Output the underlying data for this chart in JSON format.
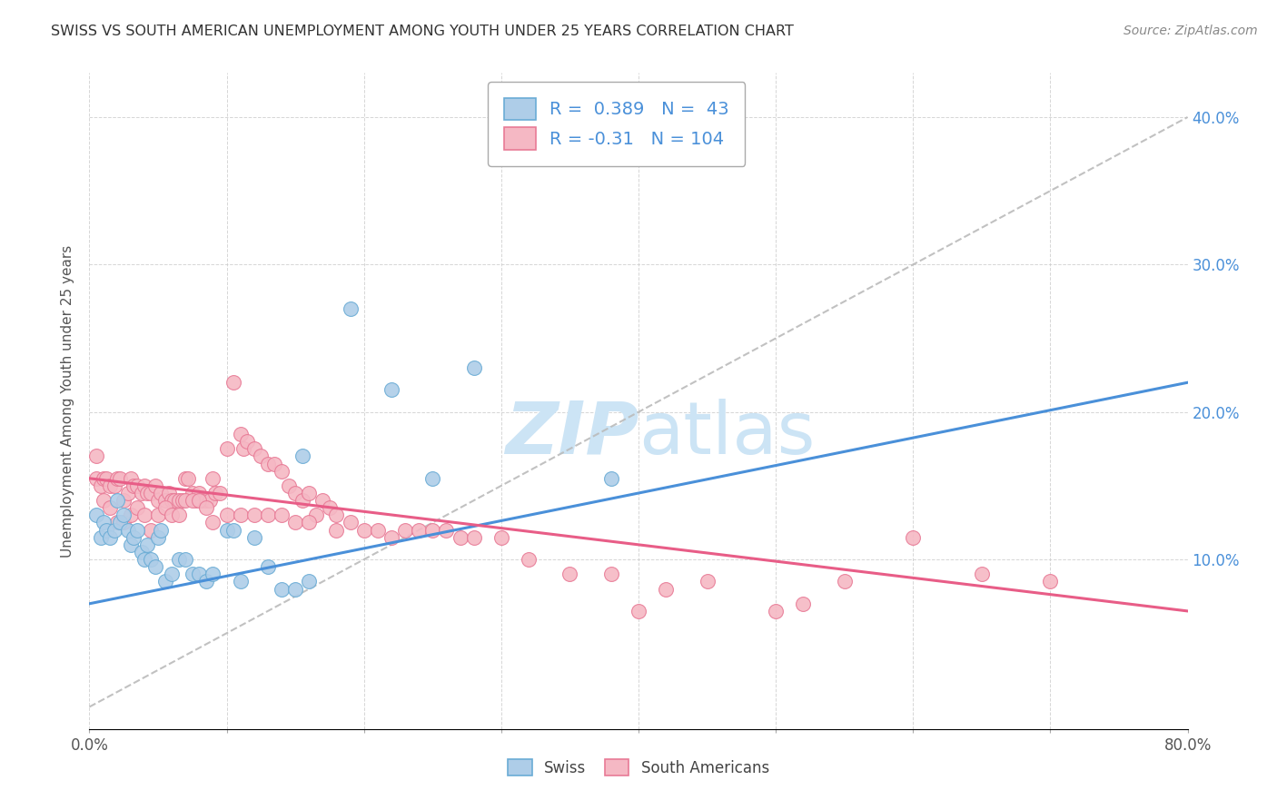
{
  "title": "SWISS VS SOUTH AMERICAN UNEMPLOYMENT AMONG YOUTH UNDER 25 YEARS CORRELATION CHART",
  "source": "Source: ZipAtlas.com",
  "ylabel": "Unemployment Among Youth under 25 years",
  "xlim": [
    0.0,
    0.8
  ],
  "ylim": [
    -0.015,
    0.43
  ],
  "xticks": [
    0.0,
    0.1,
    0.2,
    0.3,
    0.4,
    0.5,
    0.6,
    0.7,
    0.8
  ],
  "yticks_right": [
    0.1,
    0.2,
    0.3,
    0.4
  ],
  "ytick_right_labels": [
    "10.0%",
    "20.0%",
    "30.0%",
    "40.0%"
  ],
  "swiss_R": 0.389,
  "swiss_N": 43,
  "south_R": -0.31,
  "south_N": 104,
  "swiss_scatter_color": "#aecde8",
  "swiss_edge_color": "#6aacd5",
  "south_scatter_color": "#f5b8c4",
  "south_edge_color": "#e87a96",
  "swiss_line_color": "#4a90d9",
  "south_line_color": "#e85d87",
  "dash_line_color": "#bbbbbb",
  "watermark_color": "#cce4f5",
  "swiss_x": [
    0.005,
    0.008,
    0.01,
    0.012,
    0.015,
    0.018,
    0.02,
    0.022,
    0.025,
    0.028,
    0.03,
    0.032,
    0.035,
    0.038,
    0.04,
    0.042,
    0.045,
    0.048,
    0.05,
    0.052,
    0.055,
    0.06,
    0.065,
    0.07,
    0.075,
    0.08,
    0.085,
    0.09,
    0.1,
    0.105,
    0.11,
    0.12,
    0.13,
    0.14,
    0.15,
    0.155,
    0.16,
    0.19,
    0.22,
    0.25,
    0.28,
    0.33,
    0.38
  ],
  "swiss_y": [
    0.13,
    0.115,
    0.125,
    0.12,
    0.115,
    0.12,
    0.14,
    0.125,
    0.13,
    0.12,
    0.11,
    0.115,
    0.12,
    0.105,
    0.1,
    0.11,
    0.1,
    0.095,
    0.115,
    0.12,
    0.085,
    0.09,
    0.1,
    0.1,
    0.09,
    0.09,
    0.085,
    0.09,
    0.12,
    0.12,
    0.085,
    0.115,
    0.095,
    0.08,
    0.08,
    0.17,
    0.085,
    0.27,
    0.215,
    0.155,
    0.23,
    0.38,
    0.155
  ],
  "south_x": [
    0.005,
    0.008,
    0.01,
    0.012,
    0.015,
    0.018,
    0.02,
    0.022,
    0.025,
    0.028,
    0.03,
    0.032,
    0.035,
    0.038,
    0.04,
    0.042,
    0.045,
    0.048,
    0.05,
    0.052,
    0.055,
    0.058,
    0.06,
    0.062,
    0.065,
    0.068,
    0.07,
    0.072,
    0.075,
    0.078,
    0.08,
    0.082,
    0.085,
    0.088,
    0.09,
    0.092,
    0.095,
    0.1,
    0.105,
    0.11,
    0.112,
    0.115,
    0.12,
    0.125,
    0.13,
    0.135,
    0.14,
    0.145,
    0.15,
    0.155,
    0.16,
    0.165,
    0.17,
    0.175,
    0.18,
    0.19,
    0.2,
    0.21,
    0.22,
    0.23,
    0.24,
    0.25,
    0.26,
    0.27,
    0.28,
    0.3,
    0.32,
    0.35,
    0.38,
    0.4,
    0.42,
    0.45,
    0.5,
    0.52,
    0.55,
    0.6,
    0.65,
    0.7,
    0.005,
    0.01,
    0.015,
    0.02,
    0.025,
    0.03,
    0.035,
    0.04,
    0.045,
    0.05,
    0.055,
    0.06,
    0.065,
    0.07,
    0.075,
    0.08,
    0.085,
    0.09,
    0.1,
    0.11,
    0.12,
    0.13,
    0.14,
    0.15,
    0.16,
    0.18
  ],
  "south_y": [
    0.155,
    0.15,
    0.155,
    0.155,
    0.15,
    0.15,
    0.155,
    0.155,
    0.14,
    0.145,
    0.155,
    0.15,
    0.15,
    0.145,
    0.15,
    0.145,
    0.145,
    0.15,
    0.14,
    0.145,
    0.14,
    0.145,
    0.14,
    0.14,
    0.14,
    0.14,
    0.155,
    0.155,
    0.145,
    0.14,
    0.145,
    0.14,
    0.14,
    0.14,
    0.155,
    0.145,
    0.145,
    0.175,
    0.22,
    0.185,
    0.175,
    0.18,
    0.175,
    0.17,
    0.165,
    0.165,
    0.16,
    0.15,
    0.145,
    0.14,
    0.145,
    0.13,
    0.14,
    0.135,
    0.13,
    0.125,
    0.12,
    0.12,
    0.115,
    0.12,
    0.12,
    0.12,
    0.12,
    0.115,
    0.115,
    0.115,
    0.1,
    0.09,
    0.09,
    0.065,
    0.08,
    0.085,
    0.065,
    0.07,
    0.085,
    0.115,
    0.09,
    0.085,
    0.17,
    0.14,
    0.135,
    0.125,
    0.125,
    0.13,
    0.135,
    0.13,
    0.12,
    0.13,
    0.135,
    0.13,
    0.13,
    0.14,
    0.14,
    0.14,
    0.135,
    0.125,
    0.13,
    0.13,
    0.13,
    0.13,
    0.13,
    0.125,
    0.125,
    0.12
  ]
}
